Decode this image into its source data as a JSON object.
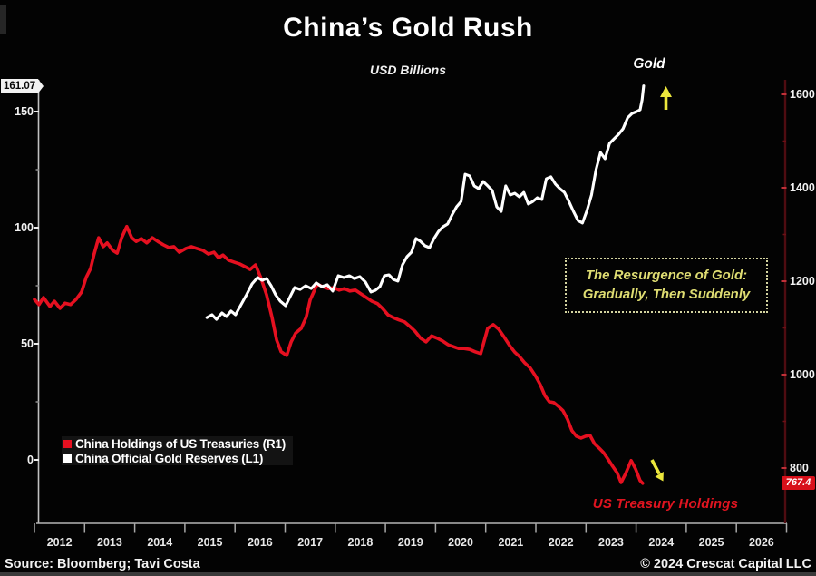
{
  "chart_data": {
    "type": "line",
    "title": "China’s Gold Rush",
    "subtitle": "USD Billions",
    "x_axis": {
      "years": [
        "2012",
        "2013",
        "2014",
        "2015",
        "2016",
        "2017",
        "2018",
        "2019",
        "2020",
        "2021",
        "2022",
        "2023",
        "2024",
        "2025",
        "2026"
      ],
      "min": 2012,
      "max": 2027
    },
    "left_axis": {
      "ticks": [
        150,
        100,
        50,
        0
      ],
      "minor_ticks": [
        125,
        75,
        25
      ],
      "range": [
        0,
        168
      ],
      "last_value": 161.07,
      "applies_to": "China Official Gold Reserves (L1)"
    },
    "right_axis": {
      "ticks": [
        1600,
        1400,
        1200,
        1000,
        800
      ],
      "minor_ticks": [
        1500,
        1300,
        1100,
        900
      ],
      "range": [
        762,
        1617
      ],
      "last_value": 767.4,
      "applies_to": "China Holdings of US Treasuries (R1)"
    },
    "grid": false,
    "legend_position": "bottom-left-inside",
    "series": [
      {
        "name": "China Holdings of US Treasuries (R1)",
        "axis": "right",
        "color": "#e51020",
        "points": [
          [
            2012.0,
            1161
          ],
          [
            2012.09,
            1150
          ],
          [
            2012.18,
            1165
          ],
          [
            2012.31,
            1146
          ],
          [
            2012.4,
            1157
          ],
          [
            2012.51,
            1142
          ],
          [
            2012.61,
            1153
          ],
          [
            2012.72,
            1150
          ],
          [
            2012.83,
            1161
          ],
          [
            2012.94,
            1177
          ],
          [
            2013.03,
            1208
          ],
          [
            2013.12,
            1227
          ],
          [
            2013.19,
            1258
          ],
          [
            2013.28,
            1293
          ],
          [
            2013.37,
            1274
          ],
          [
            2013.45,
            1282
          ],
          [
            2013.56,
            1266
          ],
          [
            2013.65,
            1260
          ],
          [
            2013.74,
            1293
          ],
          [
            2013.84,
            1317
          ],
          [
            2013.94,
            1293
          ],
          [
            2014.03,
            1285
          ],
          [
            2014.13,
            1291
          ],
          [
            2014.24,
            1282
          ],
          [
            2014.35,
            1293
          ],
          [
            2014.46,
            1285
          ],
          [
            2014.57,
            1278
          ],
          [
            2014.68,
            1272
          ],
          [
            2014.78,
            1274
          ],
          [
            2014.89,
            1262
          ],
          [
            2015.02,
            1270
          ],
          [
            2015.13,
            1274
          ],
          [
            2015.24,
            1270
          ],
          [
            2015.36,
            1266
          ],
          [
            2015.47,
            1258
          ],
          [
            2015.58,
            1262
          ],
          [
            2015.67,
            1250
          ],
          [
            2015.76,
            1256
          ],
          [
            2015.87,
            1245
          ],
          [
            2015.98,
            1241
          ],
          [
            2016.09,
            1237
          ],
          [
            2016.2,
            1231
          ],
          [
            2016.3,
            1225
          ],
          [
            2016.41,
            1235
          ],
          [
            2016.52,
            1206
          ],
          [
            2016.63,
            1171
          ],
          [
            2016.74,
            1122
          ],
          [
            2016.83,
            1074
          ],
          [
            2016.92,
            1049
          ],
          [
            2017.03,
            1041
          ],
          [
            2017.12,
            1070
          ],
          [
            2017.21,
            1089
          ],
          [
            2017.32,
            1099
          ],
          [
            2017.42,
            1123
          ],
          [
            2017.5,
            1160
          ],
          [
            2017.64,
            1194
          ],
          [
            2017.75,
            1188
          ],
          [
            2017.86,
            1184
          ],
          [
            2017.97,
            1186
          ],
          [
            2018.08,
            1181
          ],
          [
            2018.18,
            1184
          ],
          [
            2018.29,
            1179
          ],
          [
            2018.4,
            1181
          ],
          [
            2018.51,
            1173
          ],
          [
            2018.62,
            1165
          ],
          [
            2018.73,
            1157
          ],
          [
            2018.84,
            1152
          ],
          [
            2018.94,
            1142
          ],
          [
            2019.05,
            1128
          ],
          [
            2019.16,
            1122
          ],
          [
            2019.27,
            1117
          ],
          [
            2019.38,
            1113
          ],
          [
            2019.49,
            1103
          ],
          [
            2019.59,
            1093
          ],
          [
            2019.7,
            1078
          ],
          [
            2019.81,
            1070
          ],
          [
            2019.92,
            1083
          ],
          [
            2020.03,
            1078
          ],
          [
            2020.14,
            1072
          ],
          [
            2020.25,
            1064
          ],
          [
            2020.35,
            1060
          ],
          [
            2020.46,
            1056
          ],
          [
            2020.57,
            1056
          ],
          [
            2020.68,
            1054
          ],
          [
            2020.79,
            1049
          ],
          [
            2020.9,
            1045
          ],
          [
            2021.04,
            1099
          ],
          [
            2021.15,
            1107
          ],
          [
            2021.26,
            1097
          ],
          [
            2021.37,
            1080
          ],
          [
            2021.48,
            1062
          ],
          [
            2021.58,
            1048
          ],
          [
            2021.67,
            1039
          ],
          [
            2021.78,
            1025
          ],
          [
            2021.89,
            1014
          ],
          [
            2022.0,
            996
          ],
          [
            2022.09,
            978
          ],
          [
            2022.18,
            955
          ],
          [
            2022.27,
            942
          ],
          [
            2022.36,
            940
          ],
          [
            2022.45,
            932
          ],
          [
            2022.54,
            923
          ],
          [
            2022.63,
            905
          ],
          [
            2022.72,
            880
          ],
          [
            2022.81,
            868
          ],
          [
            2022.9,
            864
          ],
          [
            2022.99,
            868
          ],
          [
            2023.08,
            870
          ],
          [
            2023.17,
            852
          ],
          [
            2023.26,
            843
          ],
          [
            2023.35,
            833
          ],
          [
            2023.44,
            819
          ],
          [
            2023.53,
            804
          ],
          [
            2023.62,
            790
          ],
          [
            2023.7,
            769
          ],
          [
            2023.79,
            788
          ],
          [
            2023.9,
            816
          ],
          [
            2023.99,
            798
          ],
          [
            2024.08,
            773
          ],
          [
            2024.13,
            767.4
          ]
        ]
      },
      {
        "name": "China Official Gold Reserves (L1)",
        "axis": "left",
        "color": "#ffffff",
        "points": [
          [
            2015.44,
            61.3
          ],
          [
            2015.54,
            62.5
          ],
          [
            2015.63,
            60.5
          ],
          [
            2015.74,
            63.3
          ],
          [
            2015.83,
            61.7
          ],
          [
            2015.92,
            64.1
          ],
          [
            2016.01,
            62.5
          ],
          [
            2016.12,
            66.8
          ],
          [
            2016.23,
            71.1
          ],
          [
            2016.34,
            75.8
          ],
          [
            2016.45,
            78.5
          ],
          [
            2016.54,
            77.3
          ],
          [
            2016.63,
            78.1
          ],
          [
            2016.72,
            75
          ],
          [
            2016.81,
            71.1
          ],
          [
            2016.9,
            68.4
          ],
          [
            2017.01,
            66.4
          ],
          [
            2017.1,
            70.3
          ],
          [
            2017.19,
            74.2
          ],
          [
            2017.3,
            73.4
          ],
          [
            2017.41,
            75
          ],
          [
            2017.52,
            73.8
          ],
          [
            2017.62,
            76.2
          ],
          [
            2017.73,
            74.6
          ],
          [
            2017.84,
            75.4
          ],
          [
            2017.95,
            72.7
          ],
          [
            2018.06,
            79.3
          ],
          [
            2018.17,
            78.5
          ],
          [
            2018.28,
            79.3
          ],
          [
            2018.38,
            78.1
          ],
          [
            2018.49,
            78.9
          ],
          [
            2018.6,
            76.6
          ],
          [
            2018.71,
            72.3
          ],
          [
            2018.8,
            73
          ],
          [
            2018.89,
            74.6
          ],
          [
            2018.98,
            79.3
          ],
          [
            2019.07,
            79.7
          ],
          [
            2019.16,
            77.7
          ],
          [
            2019.25,
            77
          ],
          [
            2019.34,
            84
          ],
          [
            2019.43,
            87.5
          ],
          [
            2019.52,
            89.5
          ],
          [
            2019.61,
            95.3
          ],
          [
            2019.7,
            94.1
          ],
          [
            2019.79,
            92.2
          ],
          [
            2019.88,
            91.4
          ],
          [
            2019.97,
            95.3
          ],
          [
            2020.06,
            98.4
          ],
          [
            2020.15,
            100.4
          ],
          [
            2020.24,
            101.6
          ],
          [
            2020.33,
            105.5
          ],
          [
            2020.42,
            109
          ],
          [
            2020.51,
            111.3
          ],
          [
            2020.59,
            123
          ],
          [
            2020.68,
            122.3
          ],
          [
            2020.77,
            118
          ],
          [
            2020.86,
            116.8
          ],
          [
            2020.95,
            119.9
          ],
          [
            2021.04,
            118
          ],
          [
            2021.13,
            116
          ],
          [
            2021.22,
            109
          ],
          [
            2021.31,
            107
          ],
          [
            2021.4,
            118
          ],
          [
            2021.49,
            114.1
          ],
          [
            2021.58,
            114.8
          ],
          [
            2021.67,
            113.3
          ],
          [
            2021.76,
            115.2
          ],
          [
            2021.85,
            110.2
          ],
          [
            2021.94,
            111.3
          ],
          [
            2022.03,
            112.9
          ],
          [
            2022.12,
            112.1
          ],
          [
            2022.21,
            121.1
          ],
          [
            2022.3,
            121.9
          ],
          [
            2022.39,
            118.8
          ],
          [
            2022.48,
            116.8
          ],
          [
            2022.57,
            115.2
          ],
          [
            2022.66,
            111.3
          ],
          [
            2022.75,
            107
          ],
          [
            2022.84,
            103.1
          ],
          [
            2022.93,
            102
          ],
          [
            2023.02,
            107.4
          ],
          [
            2023.11,
            114.1
          ],
          [
            2023.2,
            125
          ],
          [
            2023.29,
            132.4
          ],
          [
            2023.38,
            129.7
          ],
          [
            2023.47,
            136.3
          ],
          [
            2023.56,
            138.3
          ],
          [
            2023.65,
            140.2
          ],
          [
            2023.74,
            142.6
          ],
          [
            2023.83,
            147.3
          ],
          [
            2023.92,
            149.2
          ],
          [
            2024.01,
            150
          ],
          [
            2024.08,
            150.8
          ],
          [
            2024.12,
            155.1
          ],
          [
            2024.15,
            161.07
          ]
        ]
      }
    ],
    "annotations": [
      {
        "text": "Gold",
        "target": "end of gold series",
        "arrow": "up"
      },
      {
        "text": "US Treasury Holdings",
        "target": "end of treasuries series",
        "arrow": "down-right"
      },
      {
        "text": "The Resurgence of Gold: Gradually, Then Suddenly",
        "style": "dotted-box"
      }
    ]
  },
  "legend": [
    {
      "label": "China Holdings of US Treasuries (R1)",
      "color": "#e51020"
    },
    {
      "label": "China Official Gold Reserves (L1)",
      "color": "#ffffff"
    }
  ],
  "annotations": {
    "gold_label": "Gold",
    "treasury_label": "US Treasury Holdings",
    "callout_line1": "The Resurgence of Gold:",
    "callout_line2": "Gradually, Then Suddenly",
    "left_value_flag": "161.07",
    "right_value_flag": "767.4"
  },
  "footer": {
    "source": "Source: Bloomberg; Tavi Costa",
    "copyright": "© 2024 Crescat Capital LLC"
  },
  "colors": {
    "background": "#030303",
    "treasuries_line": "#e51020",
    "gold_line": "#ffffff",
    "arrow_yellow": "#ece73c",
    "callout_text": "#dedc72",
    "right_axis_line": "#4f0c11",
    "left_axis_line": "#c0c0c0",
    "flag_left_bg": "#f2f2f2",
    "flag_right_bg": "#d8101a"
  }
}
